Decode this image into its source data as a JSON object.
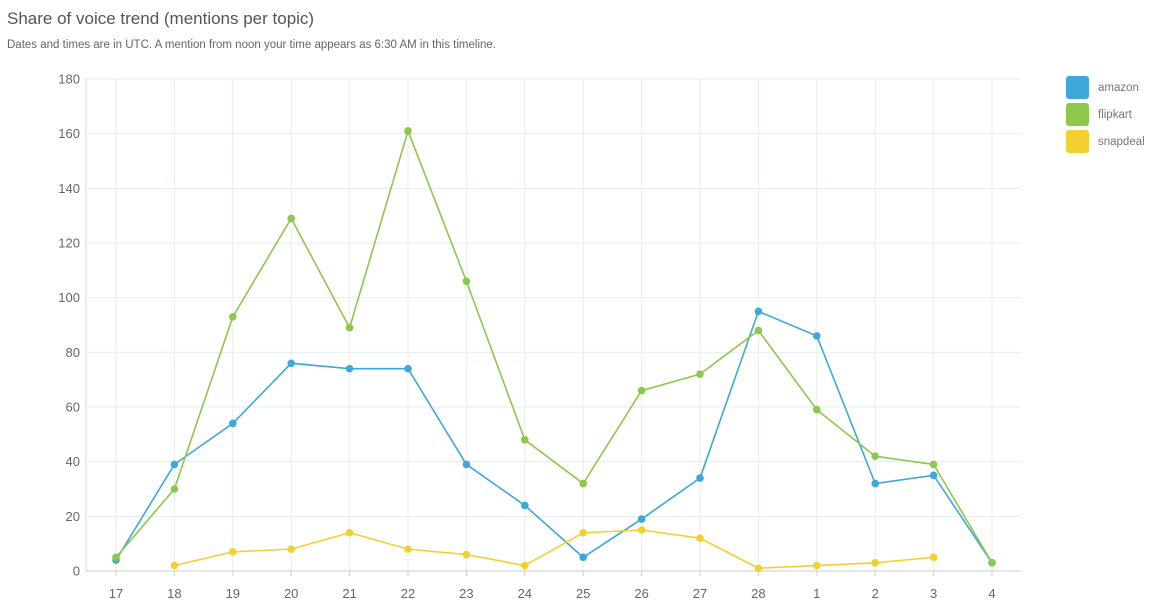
{
  "header": {
    "title": "Share of voice trend (mentions per topic)",
    "subtitle": "Dates and times are in UTC. A mention from noon your time appears as 6:30 AM in this timeline."
  },
  "chart_data": {
    "type": "line",
    "title": "Share of voice trend (mentions per topic)",
    "xlabel": "",
    "ylabel": "",
    "ylim": [
      0,
      180
    ],
    "yticks": [
      0,
      20,
      40,
      60,
      80,
      100,
      120,
      140,
      160,
      180
    ],
    "grid": true,
    "legend_position": "right",
    "categories": [
      "17",
      "18",
      "19",
      "20",
      "21",
      "22",
      "23",
      "24",
      "25",
      "26",
      "27",
      "28",
      "1",
      "2",
      "3",
      "4"
    ],
    "series": [
      {
        "name": "amazon",
        "color": "#3ea9d8",
        "values": [
          4,
          39,
          54,
          76,
          74,
          74,
          39,
          24,
          5,
          19,
          34,
          95,
          86,
          32,
          35,
          3
        ]
      },
      {
        "name": "flipkart",
        "color": "#8cc84b",
        "values": [
          5,
          30,
          93,
          129,
          89,
          161,
          106,
          48,
          32,
          66,
          72,
          88,
          59,
          42,
          39,
          3
        ]
      },
      {
        "name": "snapdeal",
        "color": "#f2d031",
        "values": [
          null,
          2,
          7,
          8,
          14,
          8,
          6,
          2,
          14,
          15,
          12,
          1,
          2,
          3,
          5,
          null
        ]
      }
    ]
  }
}
